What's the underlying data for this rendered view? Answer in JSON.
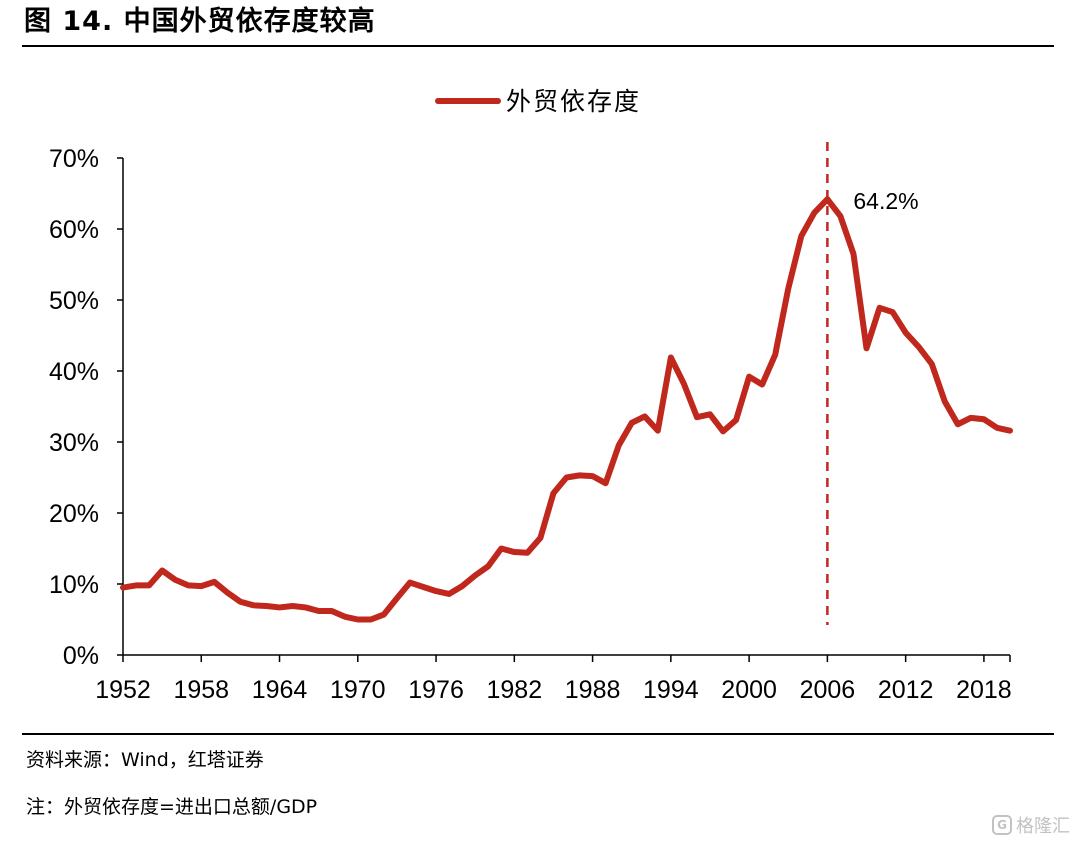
{
  "figure": {
    "title": "图 14. 中国外贸依存度较高",
    "source": "资料来源：Wind，红塔证券",
    "note": "注：外贸依存度=进出口总额/GDP",
    "watermark": "格隆汇"
  },
  "colors": {
    "series": "#c0281e",
    "axis": "#000000"
  },
  "chart_data": {
    "type": "line",
    "title": "",
    "xlabel": "",
    "ylabel": "",
    "legend_position": "top-center",
    "grid": false,
    "ylim": [
      0,
      70
    ],
    "xlim": [
      1952,
      2020
    ],
    "y_ticks": [
      0,
      10,
      20,
      30,
      40,
      50,
      60,
      70
    ],
    "y_tick_labels": [
      "0%",
      "10%",
      "20%",
      "30%",
      "40%",
      "50%",
      "60%",
      "70%"
    ],
    "x_ticks": [
      1952,
      1958,
      1964,
      1970,
      1976,
      1982,
      1988,
      1994,
      2000,
      2006,
      2012,
      2018
    ],
    "x_tick_labels": [
      "1952",
      "1958",
      "1964",
      "1970",
      "1976",
      "1982",
      "1988",
      "1994",
      "2000",
      "2006",
      "2012",
      "2018"
    ],
    "x": [
      1952,
      1953,
      1954,
      1955,
      1956,
      1957,
      1958,
      1959,
      1960,
      1961,
      1962,
      1963,
      1964,
      1965,
      1966,
      1967,
      1968,
      1969,
      1970,
      1971,
      1972,
      1973,
      1974,
      1975,
      1976,
      1977,
      1978,
      1979,
      1980,
      1981,
      1982,
      1983,
      1984,
      1985,
      1986,
      1987,
      1988,
      1989,
      1990,
      1991,
      1992,
      1993,
      1994,
      1995,
      1996,
      1997,
      1998,
      1999,
      2000,
      2001,
      2002,
      2003,
      2004,
      2005,
      2006,
      2007,
      2008,
      2009,
      2010,
      2011,
      2012,
      2013,
      2014,
      2015,
      2016,
      2017,
      2018,
      2019,
      2020
    ],
    "series": [
      {
        "name": "外贸依存度",
        "values": [
          9.5,
          9.8,
          9.8,
          11.9,
          10.6,
          9.8,
          9.7,
          10.3,
          8.8,
          7.5,
          7.0,
          6.9,
          6.7,
          6.9,
          6.7,
          6.2,
          6.2,
          5.4,
          5.0,
          5.0,
          5.7,
          8.0,
          10.2,
          9.6,
          9.0,
          8.6,
          9.7,
          11.2,
          12.5,
          15.0,
          14.5,
          14.4,
          16.5,
          22.8,
          25.0,
          25.3,
          25.2,
          24.2,
          29.5,
          32.7,
          33.6,
          31.6,
          41.9,
          38.2,
          33.5,
          33.9,
          31.5,
          33.1,
          39.2,
          38.1,
          42.3,
          51.6,
          59.0,
          62.3,
          64.2,
          61.8,
          56.5,
          43.2,
          48.9,
          48.3,
          45.4,
          43.4,
          41.0,
          35.7,
          32.5,
          33.4,
          33.2,
          32.0,
          31.6
        ]
      }
    ],
    "annotations": [
      {
        "type": "vertical-dashed-line",
        "x": 2006,
        "label": "64.2%",
        "value": 64.2
      }
    ]
  }
}
